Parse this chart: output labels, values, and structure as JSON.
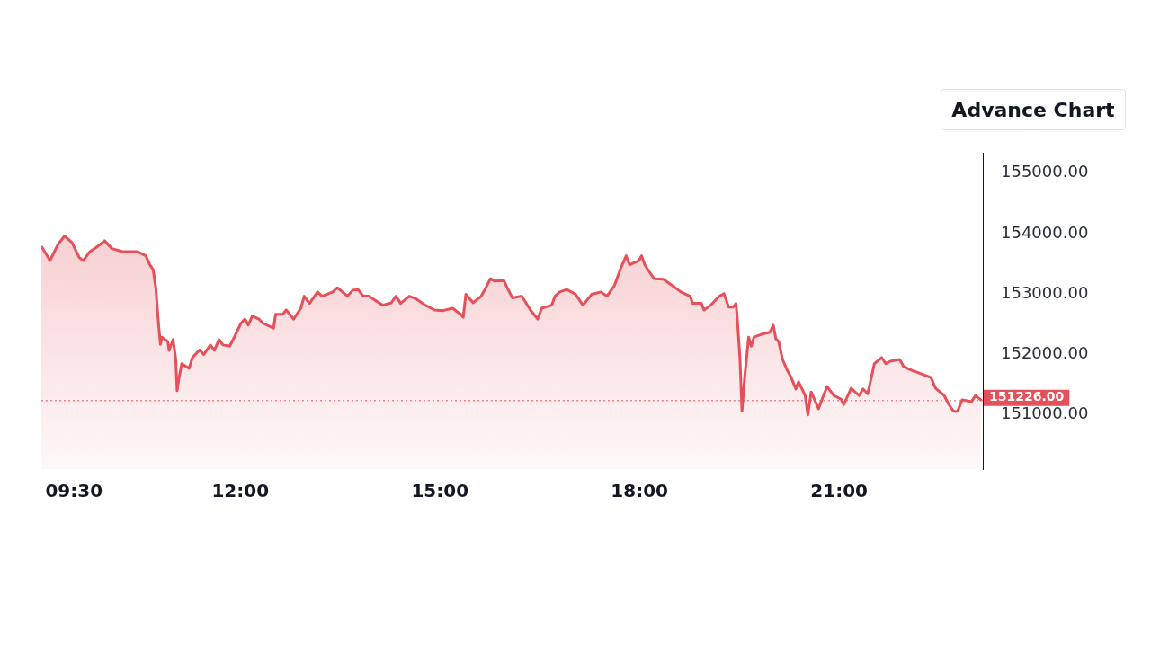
{
  "chart_data": {
    "type": "area",
    "color": "#e5505a",
    "x": [
      9.01,
      9.14,
      9.26,
      9.36,
      9.47,
      9.58,
      9.64,
      9.74,
      9.85,
      9.96,
      10.07,
      10.23,
      10.45,
      10.58,
      10.64,
      10.69,
      10.73,
      10.77,
      10.8,
      10.82,
      10.91,
      10.93,
      10.99,
      11.03,
      11.05,
      11.08,
      11.12,
      11.23,
      11.28,
      11.39,
      11.45,
      11.55,
      11.61,
      11.68,
      11.74,
      11.84,
      11.91,
      12.01,
      12.07,
      12.12,
      12.18,
      12.28,
      12.34,
      12.5,
      12.53,
      12.64,
      12.69,
      12.8,
      12.91,
      12.96,
      13.04,
      13.16,
      13.23,
      13.39,
      13.46,
      13.61,
      13.69,
      13.77,
      13.85,
      13.93,
      14.14,
      14.27,
      14.34,
      14.41,
      14.54,
      14.65,
      14.78,
      14.92,
      15.05,
      15.19,
      15.31,
      15.35,
      15.39,
      15.5,
      15.62,
      15.69,
      15.76,
      15.82,
      15.96,
      16.03,
      16.09,
      16.23,
      16.36,
      16.47,
      16.53,
      16.68,
      16.73,
      16.8,
      16.91,
      17.04,
      17.15,
      17.28,
      17.42,
      17.51,
      17.62,
      17.72,
      17.8,
      17.85,
      17.99,
      18.03,
      18.08,
      18.15,
      18.22,
      18.36,
      18.5,
      18.62,
      18.76,
      18.8,
      18.93,
      18.97,
      19.07,
      19.2,
      19.27,
      19.34,
      19.41,
      19.45,
      19.47,
      19.51,
      19.54,
      19.58,
      19.64,
      19.68,
      19.72,
      19.84,
      19.96,
      20.01,
      20.05,
      20.09,
      20.15,
      20.22,
      20.28,
      20.35,
      20.39,
      20.49,
      20.53,
      20.58,
      20.69,
      20.74,
      20.82,
      20.92,
      21.03,
      21.07,
      21.18,
      21.3,
      21.36,
      21.43,
      21.47,
      21.53,
      21.64,
      21.7,
      21.77,
      21.91,
      21.97,
      22.11,
      22.24,
      22.38,
      22.45,
      22.58,
      22.65,
      22.72,
      22.78,
      22.85,
      22.99,
      23.05,
      23.14
    ],
    "values": [
      153790,
      153550,
      153820,
      153960,
      153850,
      153600,
      153550,
      153700,
      153780,
      153880,
      153750,
      153700,
      153700,
      153630,
      153480,
      153400,
      153100,
      152510,
      152160,
      152280,
      152210,
      152060,
      152240,
      151910,
      151390,
      151610,
      151840,
      151760,
      151940,
      152070,
      151990,
      152150,
      152060,
      152240,
      152150,
      152130,
      152280,
      152510,
      152580,
      152480,
      152630,
      152580,
      152510,
      152430,
      152660,
      152660,
      152730,
      152580,
      152760,
      152960,
      152840,
      153030,
      152960,
      153030,
      153100,
      152960,
      153060,
      153070,
      152960,
      152960,
      152810,
      152850,
      152960,
      152840,
      152960,
      152910,
      152810,
      152730,
      152720,
      152760,
      152660,
      152610,
      152990,
      152850,
      152960,
      153100,
      153250,
      153210,
      153220,
      153060,
      152930,
      152960,
      152730,
      152580,
      152760,
      152810,
      152960,
      153030,
      153070,
      152990,
      152810,
      152990,
      153030,
      152960,
      153130,
      153430,
      153630,
      153480,
      153550,
      153630,
      153480,
      153360,
      153250,
      153240,
      153130,
      153030,
      152960,
      152840,
      152840,
      152730,
      152810,
      152960,
      153000,
      152780,
      152780,
      152840,
      152580,
      151910,
      151050,
      151610,
      152280,
      152130,
      152280,
      152330,
      152360,
      152480,
      152250,
      152210,
      151910,
      151730,
      151610,
      151420,
      151540,
      151310,
      150990,
      151370,
      151090,
      151240,
      151460,
      151310,
      151250,
      151160,
      151430,
      151310,
      151420,
      151340,
      151540,
      151840,
      151940,
      151840,
      151880,
      151910,
      151790,
      151720,
      151670,
      151610,
      151430,
      151310,
      151160,
      151050,
      151050,
      151240,
      151210,
      151310,
      151230
    ],
    "xlim": [
      9.01,
      23.16
    ],
    "xticks": [
      {
        "value": 9.5,
        "label": "09:30"
      },
      {
        "value": 12,
        "label": "12:00"
      },
      {
        "value": 15,
        "label": "15:00"
      },
      {
        "value": 18,
        "label": "18:00"
      },
      {
        "value": 21,
        "label": "21:00"
      }
    ],
    "ylim": [
      150090,
      155340
    ],
    "yticks": [
      {
        "value": 151000,
        "label": "151000.00"
      },
      {
        "value": 152000,
        "label": "152000.00"
      },
      {
        "value": 153000,
        "label": "153000.00"
      },
      {
        "value": 154000,
        "label": "154000.00"
      },
      {
        "value": 155000,
        "label": "155000.00"
      }
    ],
    "ref_lines": [
      {
        "axis": "y",
        "value": 151226,
        "label": "151226.00",
        "color": "#e5505a",
        "line_style": "dotted"
      }
    ],
    "annotations": [
      "Advance Chart"
    ],
    "grid": false,
    "legend": false,
    "marker": "none",
    "line_style": "solid"
  }
}
